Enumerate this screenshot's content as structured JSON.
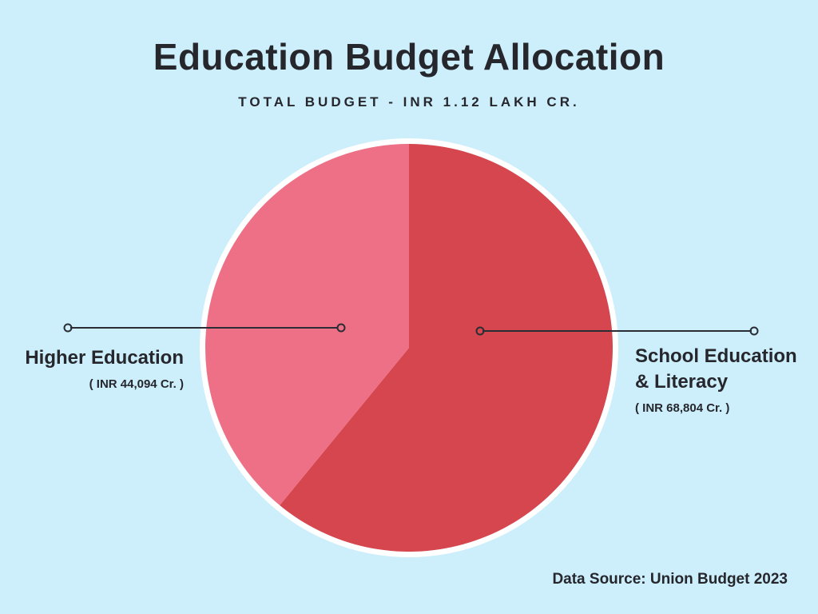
{
  "page": {
    "background": "#cdeefb",
    "text_color": "#26272d"
  },
  "header": {
    "title": "Education Budget Allocation",
    "subtitle": "TOTAL BUDGET - INR 1.12 LAKH CR."
  },
  "chart_data": {
    "type": "pie",
    "title": "Education Budget Allocation",
    "subtitle": "TOTAL BUDGET - INR 1.12 LAKH CR.",
    "units": "INR Crore",
    "start_angle_deg": 0,
    "direction": "clockwise",
    "legend_position": "side-callouts",
    "slices": [
      {
        "label": "School Education & Literacy",
        "value": 68804,
        "value_label": "( INR 68,804 Cr. )",
        "color": "#d6464f",
        "share_pct": 60.9
      },
      {
        "label": "Higher Education",
        "value": 44094,
        "value_label": "( INR 44,094 Cr. )",
        "color": "#ee7086",
        "share_pct": 39.1
      }
    ],
    "total_label": "INR 1.12 Lakh Cr."
  },
  "callouts": {
    "left": {
      "title": "Higher Education",
      "value": "( INR 44,094 Cr. )"
    },
    "right": {
      "title": "School Education & Literacy",
      "value": "( INR 68,804 Cr. )"
    }
  },
  "footer": {
    "text": "Data Source: Union Budget 2023"
  }
}
